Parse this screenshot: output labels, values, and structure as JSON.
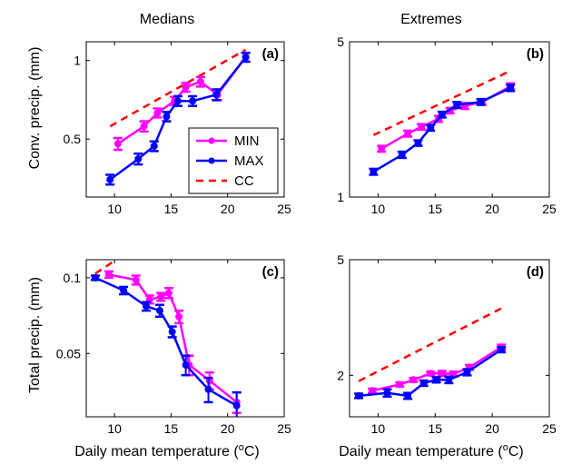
{
  "chart_data": {
    "colors": {
      "MIN": "#ff00ff",
      "MAX": "#0000ff",
      "CC": "#ff0000"
    },
    "column_titles": [
      "Medians",
      "Extremes"
    ],
    "legend": {
      "entries": [
        "MIN",
        "MAX",
        "CC"
      ],
      "placement": "inside panel (a), lower-right"
    },
    "xlabel": "Daily mean temperature (°C)",
    "panels": [
      {
        "type": "line",
        "tag": "(a)",
        "ylabel": "Conv. precip. (mm)",
        "yscale": "log",
        "xlim": [
          7.5,
          25
        ],
        "ylim": [
          0.3,
          1.18
        ],
        "xticks": [
          "10",
          "15",
          "20",
          "25"
        ],
        "yticks": [
          {
            "v": 0.5,
            "t": "0.5"
          },
          {
            "v": 1,
            "t": "1"
          }
        ],
        "series": [
          {
            "name": "MIN",
            "x": [
              10.3,
              12.6,
              13.8,
              15.3,
              16.3,
              17.6,
              19.1,
              21.6
            ],
            "y": [
              0.48,
              0.56,
              0.63,
              0.7,
              0.79,
              0.83,
              0.74,
              1.03
            ],
            "err": [
              0.025,
              0.025,
              0.025,
              0.025,
              0.03,
              0.035,
              0.035,
              0.04
            ]
          },
          {
            "name": "MAX",
            "x": [
              9.6,
              12.1,
              13.5,
              14.6,
              15.6,
              16.9,
              19.0,
              21.6
            ],
            "y": [
              0.35,
              0.42,
              0.47,
              0.61,
              0.7,
              0.7,
              0.74,
              1.03
            ],
            "err": [
              0.015,
              0.02,
              0.02,
              0.025,
              0.03,
              0.03,
              0.035,
              0.04
            ]
          },
          {
            "name": "CC",
            "x": [
              9.6,
              21.6
            ],
            "y": [
              0.56,
              1.1
            ]
          }
        ]
      },
      {
        "type": "line",
        "tag": "(b)",
        "ylabel": "",
        "yscale": "log",
        "xlim": [
          7.5,
          25
        ],
        "ylim": [
          1,
          5
        ],
        "xticks": [
          "10",
          "15",
          "20",
          "25"
        ],
        "yticks": [
          {
            "v": 1,
            "t": "1"
          },
          {
            "v": 5,
            "t": "5"
          }
        ],
        "series": [
          {
            "name": "MIN",
            "x": [
              10.3,
              12.6,
              13.8,
              15.3,
              16.3,
              17.6,
              19.1,
              21.6
            ],
            "y": [
              1.65,
              1.93,
              2.07,
              2.25,
              2.45,
              2.57,
              2.68,
              3.15
            ],
            "err": [
              0.05,
              0.06,
              0.06,
              0.07,
              0.07,
              0.08,
              0.08,
              0.1
            ]
          },
          {
            "name": "MAX",
            "x": [
              9.6,
              12.1,
              13.5,
              14.6,
              15.6,
              16.9,
              19.0,
              21.6
            ],
            "y": [
              1.3,
              1.55,
              1.75,
              2.05,
              2.35,
              2.6,
              2.68,
              3.1
            ],
            "err": [
              0.04,
              0.05,
              0.05,
              0.06,
              0.07,
              0.08,
              0.08,
              0.1
            ]
          },
          {
            "name": "CC",
            "x": [
              9.6,
              21.6
            ],
            "y": [
              1.9,
              3.7
            ]
          }
        ]
      },
      {
        "type": "line",
        "tag": "(c)",
        "ylabel": "Total precip. (mm)",
        "yscale": "log",
        "xlim": [
          7.5,
          25
        ],
        "ylim": [
          0.028,
          0.118
        ],
        "xticks": [
          "10",
          "15",
          "20",
          "25"
        ],
        "yticks": [
          {
            "v": 0.05,
            "t": "0.05"
          },
          {
            "v": 0.1,
            "t": "0.1"
          }
        ],
        "series": [
          {
            "name": "MIN",
            "x": [
              9.5,
              11.9,
              13.1,
              14.1,
              14.8,
              15.7,
              16.6,
              18.4,
              20.8
            ],
            "y": [
              0.103,
              0.098,
              0.082,
              0.084,
              0.087,
              0.07,
              0.045,
              0.039,
              0.032
            ],
            "err": [
              0.003,
              0.004,
              0.003,
              0.003,
              0.004,
              0.004,
              0.004,
              0.003,
              0.003
            ]
          },
          {
            "name": "MAX",
            "x": [
              8.3,
              10.8,
              12.8,
              14.0,
              15.1,
              16.3,
              18.3,
              20.8
            ],
            "y": [
              0.1,
              0.089,
              0.077,
              0.074,
              0.061,
              0.045,
              0.036,
              0.031
            ],
            "err": [
              0.002,
              0.003,
              0.003,
              0.004,
              0.003,
              0.004,
              0.004,
              0.004
            ]
          },
          {
            "name": "CC",
            "x": [
              8.3,
              9.9
            ],
            "y": [
              0.104,
              0.116
            ]
          }
        ]
      },
      {
        "type": "line",
        "tag": "(d)",
        "ylabel": "",
        "yscale": "log",
        "xlim": [
          7.5,
          25
        ],
        "ylim": [
          1.44,
          5
        ],
        "xticks": [
          "10",
          "15",
          "20",
          "25"
        ],
        "yticks": [
          {
            "v": 2,
            "t": "2"
          },
          {
            "v": 5,
            "t": "5"
          }
        ],
        "series": [
          {
            "name": "MIN",
            "x": [
              9.5,
              11.9,
              13.1,
              14.6,
              15.6,
              16.6,
              18.0,
              20.8
            ],
            "y": [
              1.77,
              1.86,
              1.93,
              2.03,
              2.03,
              2.02,
              2.13,
              2.5
            ],
            "err": [
              0.03,
              0.03,
              0.03,
              0.03,
              0.04,
              0.04,
              0.04,
              0.05
            ]
          },
          {
            "name": "MAX",
            "x": [
              8.3,
              10.8,
              12.6,
              14.0,
              15.1,
              16.2,
              17.8,
              20.8
            ],
            "y": [
              1.7,
              1.74,
              1.7,
              1.88,
              1.93,
              1.93,
              2.05,
              2.45
            ],
            "err": [
              0.03,
              0.05,
              0.04,
              0.04,
              0.04,
              0.05,
              0.05,
              0.05
            ]
          },
          {
            "name": "CC",
            "x": [
              8.3,
              20.8
            ],
            "y": [
              1.91,
              3.4
            ]
          }
        ]
      }
    ]
  }
}
